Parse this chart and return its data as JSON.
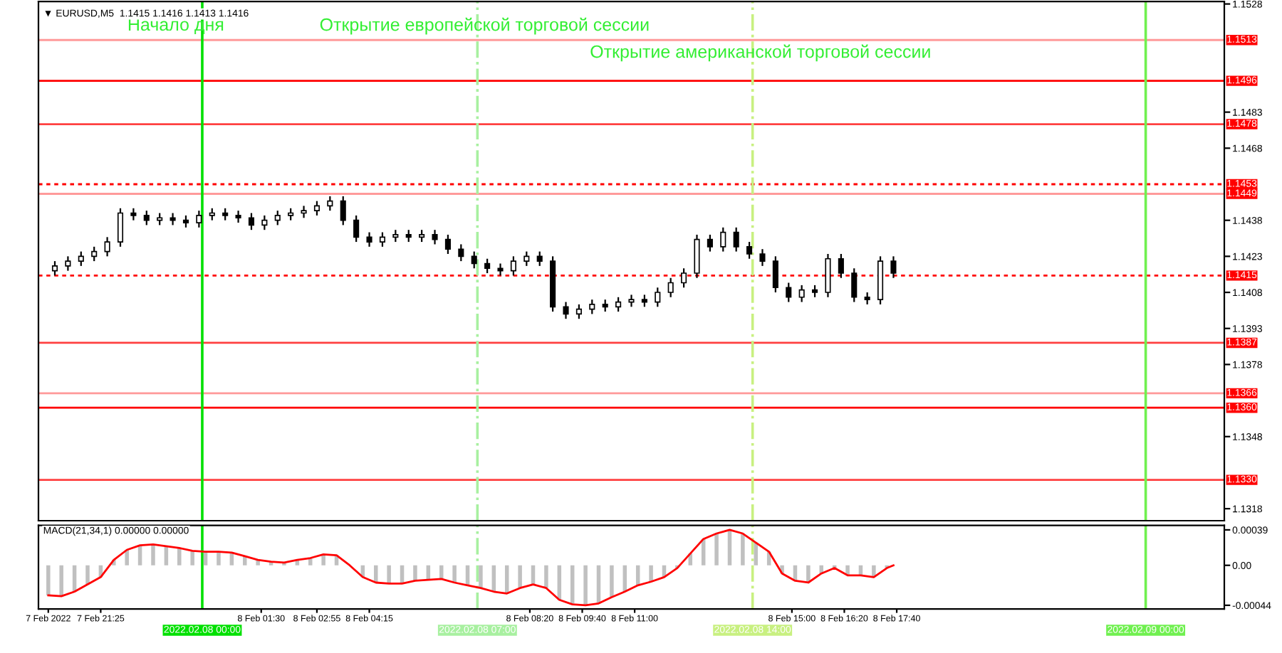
{
  "chart_data": [
    {
      "type": "candlestick",
      "title": "▼ EURUSD,M5  1.1415 1.1416 1.1413 1.1416",
      "color": "#000000",
      "tick_labels": "y",
      "x": [
        "2022-02-07T20:15",
        "2022-02-07T20:35",
        "2022-02-07T20:55",
        "2022-02-07T21:15",
        "2022-02-07T21:35",
        "2022-02-07T21:55",
        "2022-02-07T22:15",
        "2022-02-07T22:35",
        "2022-02-07T22:55",
        "2022-02-07T23:15",
        "2022-02-07T23:35",
        "2022-02-07T23:55",
        "2022-02-08T00:15",
        "2022-02-08T00:35",
        "2022-02-08T00:55",
        "2022-02-08T01:15",
        "2022-02-08T01:35",
        "2022-02-08T01:55",
        "2022-02-08T02:15",
        "2022-02-08T02:35",
        "2022-02-08T02:55",
        "2022-02-08T03:15",
        "2022-02-08T03:35",
        "2022-02-08T03:55",
        "2022-02-08T04:15",
        "2022-02-08T04:35",
        "2022-02-08T04:55",
        "2022-02-08T05:15",
        "2022-02-08T05:35",
        "2022-02-08T05:55",
        "2022-02-08T06:15",
        "2022-02-08T06:35",
        "2022-02-08T06:55",
        "2022-02-08T07:15",
        "2022-02-08T07:35",
        "2022-02-08T07:55",
        "2022-02-08T08:15",
        "2022-02-08T08:35",
        "2022-02-08T08:55",
        "2022-02-08T09:15",
        "2022-02-08T09:35",
        "2022-02-08T09:55",
        "2022-02-08T10:15",
        "2022-02-08T10:35",
        "2022-02-08T10:55",
        "2022-02-08T11:15",
        "2022-02-08T11:35",
        "2022-02-08T11:55",
        "2022-02-08T12:15",
        "2022-02-08T12:35",
        "2022-02-08T12:55",
        "2022-02-08T13:15",
        "2022-02-08T13:35",
        "2022-02-08T13:55",
        "2022-02-08T14:15",
        "2022-02-08T14:35",
        "2022-02-08T14:55",
        "2022-02-08T15:15",
        "2022-02-08T15:35",
        "2022-02-08T15:55",
        "2022-02-08T16:15",
        "2022-02-08T16:35",
        "2022-02-08T16:55",
        "2022-02-08T17:15",
        "2022-02-08T17:35"
      ],
      "ohlc": [
        [
          1.1417,
          1.1421,
          1.1415,
          1.1419
        ],
        [
          1.1419,
          1.1423,
          1.1417,
          1.1421
        ],
        [
          1.1421,
          1.1425,
          1.1419,
          1.1423
        ],
        [
          1.1423,
          1.1427,
          1.1421,
          1.1425
        ],
        [
          1.1425,
          1.1431,
          1.1423,
          1.1429
        ],
        [
          1.1429,
          1.1443,
          1.1427,
          1.1441
        ],
        [
          1.1441,
          1.1443,
          1.1438,
          1.144
        ],
        [
          1.144,
          1.1442,
          1.1436,
          1.1438
        ],
        [
          1.1438,
          1.1441,
          1.1436,
          1.1439
        ],
        [
          1.1439,
          1.1441,
          1.1436,
          1.1438
        ],
        [
          1.1438,
          1.144,
          1.1435,
          1.1437
        ],
        [
          1.1437,
          1.1442,
          1.1435,
          1.144
        ],
        [
          1.144,
          1.1443,
          1.1438,
          1.1441
        ],
        [
          1.1441,
          1.1443,
          1.1438,
          1.144
        ],
        [
          1.144,
          1.1442,
          1.1437,
          1.1439
        ],
        [
          1.1439,
          1.1441,
          1.1434,
          1.1436
        ],
        [
          1.1436,
          1.144,
          1.1434,
          1.1438
        ],
        [
          1.1438,
          1.1442,
          1.1436,
          1.144
        ],
        [
          1.144,
          1.1443,
          1.1438,
          1.1441
        ],
        [
          1.1441,
          1.1444,
          1.1439,
          1.1442
        ],
        [
          1.1442,
          1.1446,
          1.144,
          1.1444
        ],
        [
          1.1444,
          1.1448,
          1.1442,
          1.1446
        ],
        [
          1.1446,
          1.1448,
          1.1436,
          1.1438
        ],
        [
          1.1438,
          1.144,
          1.1429,
          1.1431
        ],
        [
          1.1431,
          1.1433,
          1.1427,
          1.1429
        ],
        [
          1.1429,
          1.1433,
          1.1427,
          1.1431
        ],
        [
          1.1431,
          1.1434,
          1.1429,
          1.1432
        ],
        [
          1.1432,
          1.1434,
          1.1429,
          1.1431
        ],
        [
          1.1431,
          1.1434,
          1.1429,
          1.1432
        ],
        [
          1.1432,
          1.1434,
          1.1428,
          1.143
        ],
        [
          1.143,
          1.1432,
          1.1424,
          1.1426
        ],
        [
          1.1426,
          1.1428,
          1.1421,
          1.1423
        ],
        [
          1.1423,
          1.1425,
          1.1418,
          1.142
        ],
        [
          1.142,
          1.1422,
          1.1416,
          1.1418
        ],
        [
          1.1418,
          1.142,
          1.1415,
          1.1417
        ],
        [
          1.1417,
          1.1423,
          1.1415,
          1.1421
        ],
        [
          1.1421,
          1.1425,
          1.1419,
          1.1423
        ],
        [
          1.1423,
          1.1425,
          1.1419,
          1.1421
        ],
        [
          1.1421,
          1.1423,
          1.14,
          1.1402
        ],
        [
          1.1402,
          1.1404,
          1.1397,
          1.1399
        ],
        [
          1.1399,
          1.1403,
          1.1397,
          1.1401
        ],
        [
          1.1401,
          1.1405,
          1.1399,
          1.1403
        ],
        [
          1.1403,
          1.1405,
          1.14,
          1.1402
        ],
        [
          1.1402,
          1.1406,
          1.14,
          1.1404
        ],
        [
          1.1404,
          1.1407,
          1.1402,
          1.1405
        ],
        [
          1.1405,
          1.1407,
          1.1402,
          1.1404
        ],
        [
          1.1404,
          1.141,
          1.1402,
          1.1408
        ],
        [
          1.1408,
          1.1414,
          1.1406,
          1.1412
        ],
        [
          1.1412,
          1.1418,
          1.141,
          1.1416
        ],
        [
          1.1416,
          1.1432,
          1.1414,
          1.143
        ],
        [
          1.143,
          1.1432,
          1.1425,
          1.1427
        ],
        [
          1.1427,
          1.1435,
          1.1425,
          1.1433
        ],
        [
          1.1433,
          1.1435,
          1.1425,
          1.1427
        ],
        [
          1.1427,
          1.1429,
          1.1422,
          1.1424
        ],
        [
          1.1424,
          1.1426,
          1.1419,
          1.1421
        ],
        [
          1.1421,
          1.1423,
          1.1408,
          1.141
        ],
        [
          1.141,
          1.1412,
          1.1404,
          1.1406
        ],
        [
          1.1406,
          1.1411,
          1.1404,
          1.1409
        ],
        [
          1.1409,
          1.1411,
          1.1406,
          1.1408
        ],
        [
          1.1408,
          1.1424,
          1.1406,
          1.1422
        ],
        [
          1.1422,
          1.1424,
          1.1414,
          1.1416
        ],
        [
          1.1416,
          1.1418,
          1.1404,
          1.1406
        ],
        [
          1.1406,
          1.1408,
          1.1403,
          1.1405
        ],
        [
          1.1405,
          1.1423,
          1.1403,
          1.1421
        ],
        [
          1.1421,
          1.1423,
          1.1414,
          1.1416
        ]
      ],
      "xlim": [
        "2022-02-07T19:50",
        "2022-02-09T02:00"
      ],
      "ylim": [
        1.1313,
        1.1529
      ],
      "yticks": [
        1.1318,
        1.1348,
        1.1378,
        1.1393,
        1.1408,
        1.1423,
        1.1438,
        1.1468,
        1.1483,
        1.1528
      ],
      "ref_lines": [
        {
          "axis": "y",
          "value": 1.1513,
          "label": "1.1513",
          "color": "#ff9a9a",
          "line_style": "solid"
        },
        {
          "axis": "y",
          "value": 1.1496,
          "label": "1.1496",
          "color": "#ff0000",
          "line_style": "solid"
        },
        {
          "axis": "y",
          "value": 1.1478,
          "label": "1.1478",
          "color": "#ff4040",
          "line_style": "solid"
        },
        {
          "axis": "y",
          "value": 1.1453,
          "label": "1.1453",
          "color": "#ff0000",
          "line_style": "dotted"
        },
        {
          "axis": "y",
          "value": 1.1449,
          "label": "1.1449",
          "color": "#ff9a9a",
          "line_style": "solid"
        },
        {
          "axis": "y",
          "value": 1.1415,
          "label": "1.1415",
          "color": "#ff0000",
          "line_style": "dotted"
        },
        {
          "axis": "y",
          "value": 1.1387,
          "label": "1.1387",
          "color": "#ff4040",
          "line_style": "solid"
        },
        {
          "axis": "y",
          "value": 1.1366,
          "label": "1.1366",
          "color": "#ff9a9a",
          "line_style": "solid"
        },
        {
          "axis": "y",
          "value": 1.136,
          "label": "1.1360",
          "color": "#ff0000",
          "line_style": "solid"
        },
        {
          "axis": "y",
          "value": 1.133,
          "label": "1.1330",
          "color": "#ff4040",
          "line_style": "solid"
        },
        {
          "axis": "x",
          "value": "2022-02-08T00:00",
          "color": "#00e000",
          "line_style": "solid"
        },
        {
          "axis": "x",
          "value": "2022-02-08T07:00",
          "color": "#a8f0a0",
          "line_style": "dashed"
        },
        {
          "axis": "x",
          "value": "2022-02-08T14:00",
          "color": "#c8f080",
          "line_style": "dashed"
        },
        {
          "axis": "x",
          "value": "2022-02-09T00:00",
          "color": "#70f050",
          "line_style": "solid"
        }
      ],
      "annotations": [
        "Начало дня",
        "Открытие европейской торговой сессии",
        "Открытие американской торговой сессии"
      ]
    },
    {
      "type": "bar",
      "title": "MACD(21,34,1) 0.00000 0.00000",
      "x": [
        "2022-02-07T20:05",
        "2022-02-07T20:25",
        "2022-02-07T20:45",
        "2022-02-07T21:05",
        "2022-02-07T21:25",
        "2022-02-07T21:45",
        "2022-02-07T22:05",
        "2022-02-07T22:25",
        "2022-02-07T22:45",
        "2022-02-07T23:05",
        "2022-02-07T23:25",
        "2022-02-07T23:45",
        "2022-02-08T00:05",
        "2022-02-08T00:25",
        "2022-02-08T00:45",
        "2022-02-08T01:05",
        "2022-02-08T01:25",
        "2022-02-08T01:45",
        "2022-02-08T02:05",
        "2022-02-08T02:25",
        "2022-02-08T02:45",
        "2022-02-08T03:05",
        "2022-02-08T03:25",
        "2022-02-08T03:45",
        "2022-02-08T04:05",
        "2022-02-08T04:25",
        "2022-02-08T04:45",
        "2022-02-08T05:05",
        "2022-02-08T05:25",
        "2022-02-08T05:45",
        "2022-02-08T06:05",
        "2022-02-08T06:25",
        "2022-02-08T06:45",
        "2022-02-08T07:05",
        "2022-02-08T07:25",
        "2022-02-08T07:45",
        "2022-02-08T08:05",
        "2022-02-08T08:25",
        "2022-02-08T08:45",
        "2022-02-08T09:05",
        "2022-02-08T09:25",
        "2022-02-08T09:45",
        "2022-02-08T10:05",
        "2022-02-08T10:25",
        "2022-02-08T10:45",
        "2022-02-08T11:05",
        "2022-02-08T11:25",
        "2022-02-08T11:45",
        "2022-02-08T12:05",
        "2022-02-08T12:25",
        "2022-02-08T12:45",
        "2022-02-08T13:05",
        "2022-02-08T13:25",
        "2022-02-08T13:45",
        "2022-02-08T14:05",
        "2022-02-08T14:25",
        "2022-02-08T14:45",
        "2022-02-08T15:05",
        "2022-02-08T15:25",
        "2022-02-08T15:45",
        "2022-02-08T16:05",
        "2022-02-08T16:25",
        "2022-02-08T16:45",
        "2022-02-08T17:05",
        "2022-02-08T17:25",
        "2022-02-08T17:35"
      ],
      "series": [
        {
          "type": "bar",
          "color": "#c0c0c0",
          "values": [
            -0.00033,
            -0.00034,
            -0.00029,
            -0.00021,
            -0.00013,
            6e-05,
            0.00017,
            0.00022,
            0.00023,
            0.00021,
            0.00019,
            0.00016,
            0.00015,
            0.00015,
            0.00014,
            0.0001,
            6e-05,
            4e-05,
            3e-05,
            6e-05,
            8e-05,
            0.00012,
            0.00011,
            0.0,
            -0.00013,
            -0.00019,
            -0.0002,
            -0.0002,
            -0.00017,
            -0.00016,
            -0.00015,
            -0.00019,
            -0.00022,
            -0.00025,
            -0.00029,
            -0.00031,
            -0.00025,
            -0.00021,
            -0.00025,
            -0.00038,
            -0.00043,
            -0.00044,
            -0.00042,
            -0.00035,
            -0.00029,
            -0.00022,
            -0.00018,
            -0.00013,
            -3e-05,
            0.00013,
            0.00029,
            0.00035,
            0.00039,
            0.00035,
            0.00025,
            0.00015,
            -9e-05,
            -0.00017,
            -0.00019,
            -9e-05,
            -3e-05,
            -0.00011,
            -0.00011,
            -0.00013,
            -3e-05,
            0.0
          ]
        },
        {
          "type": "line",
          "color": "#ff0000",
          "values": [
            -0.00033,
            -0.00034,
            -0.00029,
            -0.00021,
            -0.00013,
            6e-05,
            0.00017,
            0.00022,
            0.00023,
            0.00021,
            0.00019,
            0.00016,
            0.00015,
            0.00015,
            0.00014,
            0.0001,
            6e-05,
            4e-05,
            3e-05,
            6e-05,
            8e-05,
            0.00012,
            0.00011,
            0.0,
            -0.00013,
            -0.00019,
            -0.0002,
            -0.0002,
            -0.00017,
            -0.00016,
            -0.00015,
            -0.00019,
            -0.00022,
            -0.00025,
            -0.00029,
            -0.00031,
            -0.00025,
            -0.00021,
            -0.00025,
            -0.00038,
            -0.00043,
            -0.00044,
            -0.00042,
            -0.00035,
            -0.00029,
            -0.00022,
            -0.00018,
            -0.00013,
            -3e-05,
            0.00013,
            0.00029,
            0.00035,
            0.00039,
            0.00035,
            0.00025,
            0.00015,
            -9e-05,
            -0.00017,
            -0.00019,
            -9e-05,
            -3e-05,
            -0.00011,
            -0.00011,
            -0.00013,
            -3e-05,
            0.0
          ]
        }
      ],
      "xlim": [
        "2022-02-07T19:50",
        "2022-02-09T02:00"
      ],
      "ylim": [
        -0.00048,
        0.00044
      ],
      "yticks": [
        {
          "value": -0.00044,
          "label": "-0.00044"
        },
        {
          "value": 0,
          "label": "0.00"
        },
        {
          "value": 0.00039,
          "label": "0.00039"
        }
      ],
      "xticks": [
        {
          "value": "2022-02-07T20:05",
          "label": "7 Feb 2022"
        },
        {
          "value": "2022-02-07T21:25",
          "label": "7 Feb 21:25"
        },
        {
          "value": "2022-02-08T01:30",
          "label": "8 Feb 01:30"
        },
        {
          "value": "2022-02-08T02:55",
          "label": "8 Feb 02:55"
        },
        {
          "value": "2022-02-08T04:15",
          "label": "8 Feb 04:15"
        },
        {
          "value": "2022-02-08T08:20",
          "label": "8 Feb 08:20"
        },
        {
          "value": "2022-02-08T09:40",
          "label": "8 Feb 09:40"
        },
        {
          "value": "2022-02-08T11:00",
          "label": "8 Feb 11:00"
        },
        {
          "value": "2022-02-08T15:00",
          "label": "8 Feb 15:00"
        },
        {
          "value": "2022-02-08T16:20",
          "label": "8 Feb 16:20"
        },
        {
          "value": "2022-02-08T17:40",
          "label": "8 Feb 17:40"
        }
      ],
      "ref_lines": [
        {
          "axis": "x",
          "value": "2022-02-08T00:00",
          "label": "2022.02.08 00:00",
          "color": "#00e000",
          "line_style": "solid"
        },
        {
          "axis": "x",
          "value": "2022-02-08T07:00",
          "label": "2022.02.08 07:00",
          "color": "#a8f0a0",
          "line_style": "dashed"
        },
        {
          "axis": "x",
          "value": "2022-02-08T14:00",
          "label": "2022.02.08 14:00",
          "color": "#c8f080",
          "line_style": "dashed"
        },
        {
          "axis": "x",
          "value": "2022-02-09T00:00",
          "label": "2022.02.09 00:00",
          "color": "#70f050",
          "line_style": "solid"
        }
      ]
    }
  ]
}
